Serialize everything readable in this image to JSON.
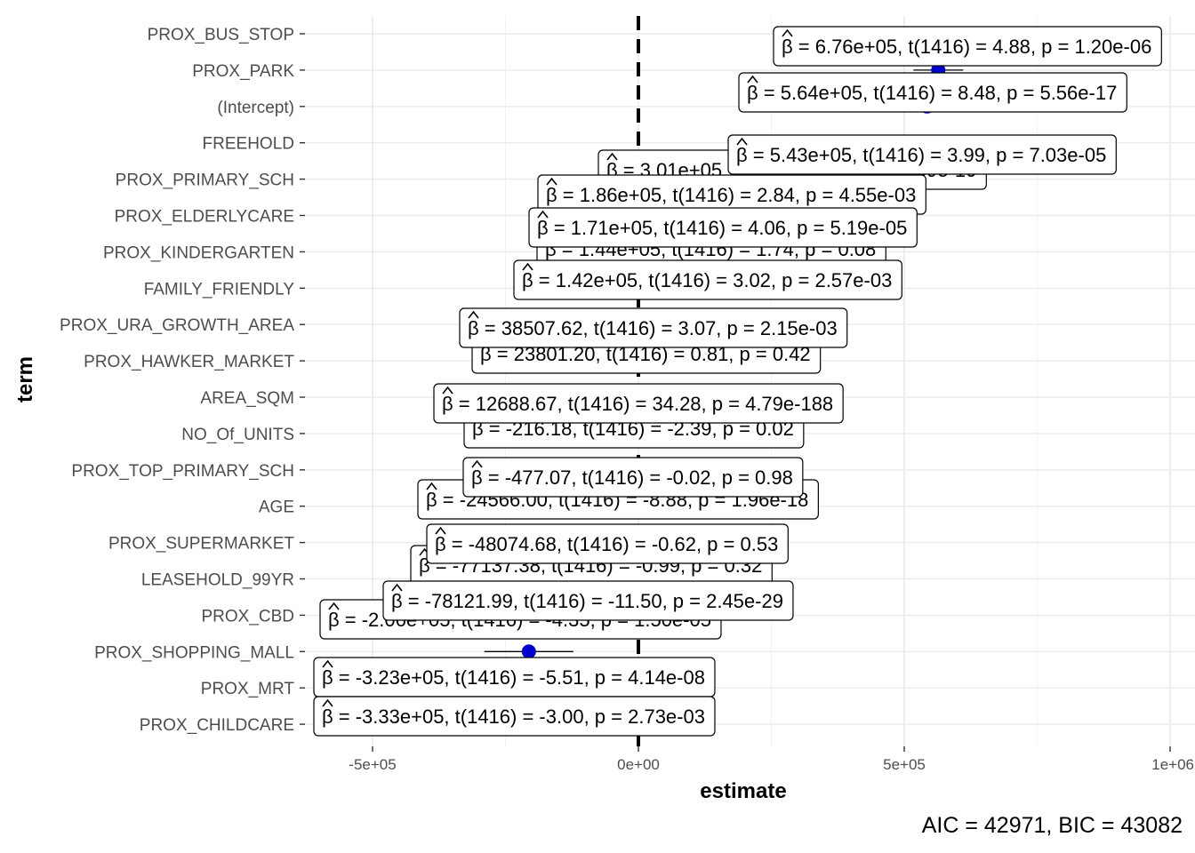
{
  "chart_data": {
    "type": "scatter",
    "xlabel": "estimate",
    "ylabel": "term",
    "xlim": [
      -600000,
      1000000
    ],
    "x_ticks": [
      "-5e+05",
      "0e+00",
      "5e+05",
      "1e+06"
    ],
    "x_tick_values": [
      -500000,
      0,
      500000,
      1000000
    ],
    "reference_line": 0,
    "grid": true,
    "point_color": "#0000cc",
    "caption": "AIC = 42971, BIC = 43082",
    "terms": [
      {
        "term": "PROX_BUS_STOP",
        "estimate": 676000,
        "label_rest": " = 6.76e+05, t(1416) = 4.88, p = 1.20e-06"
      },
      {
        "term": "PROX_PARK",
        "estimate": 564000,
        "label_rest": " = 5.64e+05, t(1416) = 8.48, p = 5.56e-17"
      },
      {
        "term": "(Intercept)",
        "estimate": 543000,
        "label_rest": " = 5.43e+05, t(1416) = 3.99, p = 7.03e-05"
      },
      {
        "term": "FREEHOLD",
        "estimate": 301000,
        "label_rest": " = 3.01e+05, t(1416) = 6.53, p = 1.39e-10"
      },
      {
        "term": "PROX_PRIMARY_SCH",
        "estimate": 186000,
        "label_rest": " = 1.86e+05, t(1416) = 2.84, p = 4.55e-03"
      },
      {
        "term": "PROX_ELDERLYCARE",
        "estimate": 171000,
        "label_rest": " = 1.71e+05, t(1416) = 4.06, p = 5.19e-05"
      },
      {
        "term": "PROX_KINDERGARTEN",
        "estimate": 144000,
        "label_rest": " = 1.44e+05, t(1416) = 1.74, p = 0.08"
      },
      {
        "term": "FAMILY_FRIENDLY",
        "estimate": 142000,
        "label_rest": " = 1.42e+05, t(1416) = 3.02, p = 2.57e-03"
      },
      {
        "term": "PROX_URA_GROWTH_AREA",
        "estimate": 38507.62,
        "label_rest": " = 38507.62, t(1416) = 3.07, p = 2.15e-03"
      },
      {
        "term": "PROX_HAWKER_MARKET",
        "estimate": 23801.2,
        "label_rest": " = 23801.20, t(1416) = 0.81, p = 0.42"
      },
      {
        "term": "AREA_SQM",
        "estimate": 12688.67,
        "label_rest": " = 12688.67, t(1416) = 34.28, p = 4.79e-188"
      },
      {
        "term": "NO_Of_UNITS",
        "estimate": -216.18,
        "label_rest": " = -216.18, t(1416) = -2.39, p = 0.02"
      },
      {
        "term": "PROX_TOP_PRIMARY_SCH",
        "estimate": -477.07,
        "label_rest": " = -477.07, t(1416) = -0.02, p = 0.98"
      },
      {
        "term": "AGE",
        "estimate": -24566.0,
        "label_rest": " = -24566.00, t(1416) = -8.88, p = 1.96e-18"
      },
      {
        "term": "PROX_SUPERMARKET",
        "estimate": -48074.68,
        "label_rest": " = -48074.68, t(1416) = -0.62, p = 0.53"
      },
      {
        "term": "LEASEHOLD_99YR",
        "estimate": -77137.38,
        "label_rest": " = -77137.38, t(1416) = -0.99, p = 0.32"
      },
      {
        "term": "PROX_CBD",
        "estimate": -78121.99,
        "label_rest": " = -78121.99, t(1416) = -11.50, p = 2.45e-29"
      },
      {
        "term": "PROX_SHOPPING_MALL",
        "estimate": -206000,
        "label_rest": " = -2.06e+05, t(1416) = -4.35, p = 1.50e-05"
      },
      {
        "term": "PROX_MRT",
        "estimate": -323000,
        "label_rest": " = -3.23e+05, t(1416) = -5.51, p = 4.14e-08"
      },
      {
        "term": "PROX_CHILDCARE",
        "estimate": -333000,
        "label_rest": " = -3.33e+05, t(1416) = -3.00, p = 2.73e-03"
      }
    ]
  }
}
